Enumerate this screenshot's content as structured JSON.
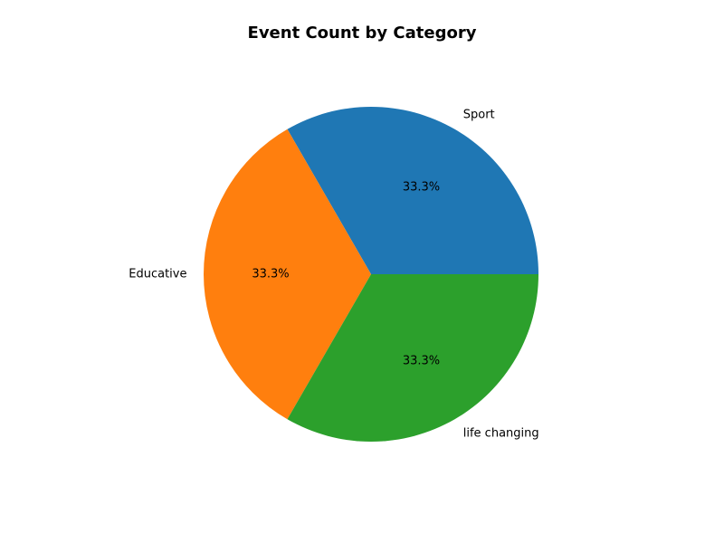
{
  "chart_data": {
    "type": "pie",
    "title": "Event Count by Category",
    "categories": [
      "Sport",
      "Educative",
      "life changing"
    ],
    "values": [
      1,
      1,
      1
    ],
    "percent_labels": [
      "33.3%",
      "33.3%",
      "33.3%"
    ],
    "colors": [
      "#1f77b4",
      "#ff7f0e",
      "#2ca02c"
    ],
    "start_angle_deg": 0,
    "direction": "counterclockwise",
    "legend": "none"
  }
}
